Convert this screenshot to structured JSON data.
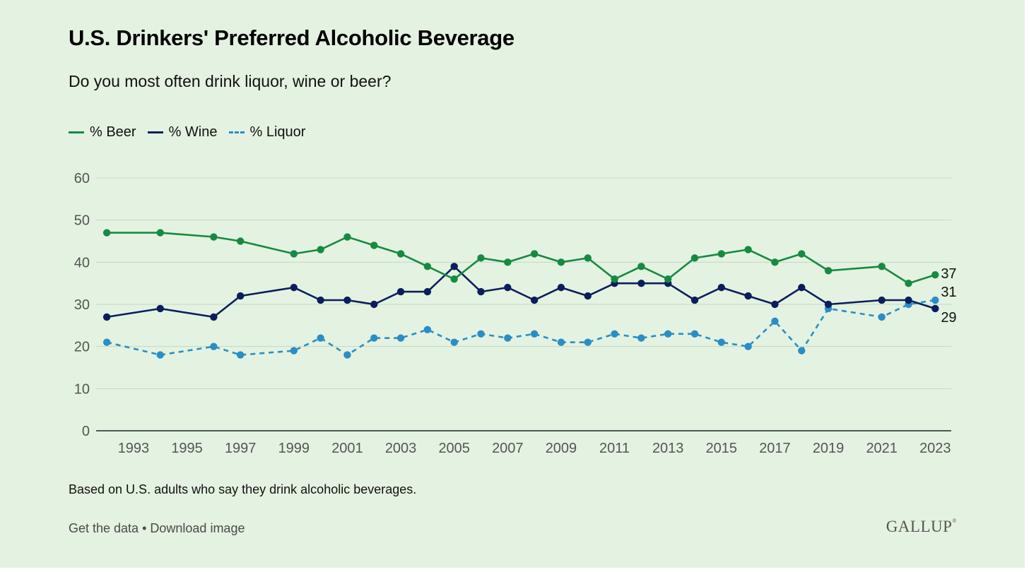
{
  "header": {
    "title": "U.S. Drinkers' Preferred Alcoholic Beverage",
    "subtitle": "Do you most often drink liquor, wine or beer?"
  },
  "legend": {
    "beer": "% Beer",
    "wine": "% Wine",
    "liquor": "% Liquor"
  },
  "colors": {
    "beer": "#168a41",
    "wine": "#0b1e5b",
    "liquor": "#2a8ec4"
  },
  "chart_data": {
    "type": "line",
    "x": [
      1992,
      1994,
      1996,
      1997,
      1999,
      2000,
      2001,
      2002,
      2003,
      2004,
      2005,
      2006,
      2007,
      2008,
      2009,
      2010,
      2011,
      2012,
      2013,
      2014,
      2015,
      2016,
      2017,
      2018,
      2019,
      2021,
      2022,
      2023
    ],
    "xticks": [
      "1993",
      "1995",
      "1997",
      "1999",
      "2001",
      "2003",
      "2005",
      "2007",
      "2009",
      "2011",
      "2013",
      "2015",
      "2017",
      "2019",
      "2021",
      "2023"
    ],
    "yticks": [
      "0",
      "10",
      "20",
      "30",
      "40",
      "50",
      "60"
    ],
    "ylim": [
      0,
      60
    ],
    "xlim": [
      1991.6,
      2023.6
    ],
    "grid": true,
    "legend_position": "top-left",
    "series": [
      {
        "name": "% Beer",
        "key": "beer",
        "style": "solid",
        "values": [
          47,
          47,
          46,
          45,
          42,
          43,
          46,
          44,
          42,
          39,
          36,
          41,
          40,
          42,
          40,
          41,
          36,
          39,
          36,
          41,
          42,
          43,
          40,
          42,
          38,
          39,
          35,
          37
        ],
        "end_label": "37"
      },
      {
        "name": "% Wine",
        "key": "wine",
        "style": "solid",
        "values": [
          27,
          29,
          27,
          32,
          34,
          31,
          31,
          30,
          33,
          33,
          39,
          33,
          34,
          31,
          34,
          32,
          35,
          35,
          35,
          31,
          34,
          32,
          30,
          34,
          30,
          31,
          31,
          29
        ],
        "end_label": "29"
      },
      {
        "name": "% Liquor",
        "key": "liquor",
        "style": "dashed",
        "values": [
          21,
          18,
          20,
          18,
          19,
          22,
          18,
          22,
          22,
          24,
          21,
          23,
          22,
          23,
          21,
          21,
          23,
          22,
          23,
          23,
          21,
          20,
          26,
          19,
          29,
          27,
          30,
          31
        ],
        "end_label": "31"
      }
    ]
  },
  "note": "Based on U.S. adults who say they drink alcoholic beverages.",
  "footer": {
    "get_data": "Get the data",
    "separator": " • ",
    "download": "Download image",
    "brand": "GALLUP"
  }
}
